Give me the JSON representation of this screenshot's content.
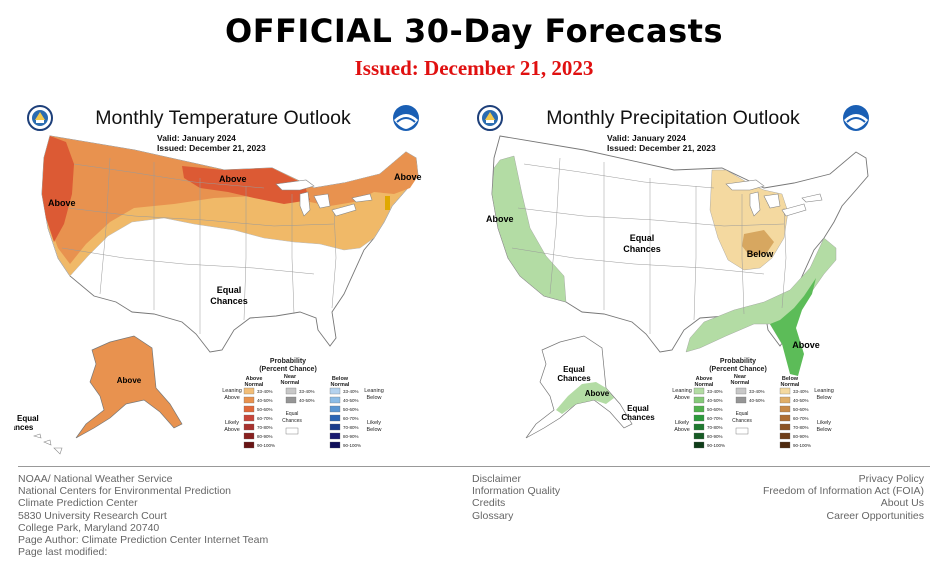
{
  "page": {
    "title": "OFFICIAL 30-Day Forecasts",
    "issued": "Issued: December 21, 2023"
  },
  "temperature_map": {
    "title": "Monthly Temperature Outlook",
    "valid": "Valid:  January 2024",
    "issued": "Issued:  December 21, 2023",
    "labels": {
      "above_west": "Above",
      "above_north": "Above",
      "above_northeast": "Above",
      "equal_chances_line1": "Equal",
      "equal_chances_line2": "Chances",
      "above_alaska": "Above",
      "hawaii_equal_line1": "Equal",
      "hawaii_equal_line2": "Chances"
    },
    "legend": {
      "title_line1": "Probability",
      "title_line2": "(Percent Chance)",
      "col_left_line1": "Above",
      "col_left_line2": "Normal",
      "col_mid_line1": "Near",
      "col_mid_line2": "Normal",
      "col_right_line1": "Below",
      "col_right_line2": "Normal",
      "leaning_left_line1": "Leaning",
      "leaning_left_line2": "Above",
      "likely_left_line1": "Likely",
      "likely_left_line2": "Above",
      "leaning_right_line1": "Leaning",
      "leaning_right_line2": "Below",
      "likely_right_line1": "Likely",
      "likely_right_line2": "Below",
      "equal_line1": "Equal",
      "equal_line2": "Chances",
      "left_colors": [
        "#f2be78",
        "#e8924f",
        "#e0683a",
        "#c8453a",
        "#a8322e",
        "#88201f",
        "#681414"
      ],
      "mid_colors": [
        "#c8c8c8",
        "#969696"
      ],
      "right_colors": [
        "#b4d2ee",
        "#8cbce6",
        "#5a96d2",
        "#2a64b4",
        "#1a3c8c",
        "#1a1a70",
        "#10105a"
      ],
      "ranges": [
        "33-40%",
        "40-50%",
        "50-60%",
        "60-70%",
        "70-80%",
        "80-90%",
        "90-100%"
      ],
      "mid_ranges": [
        "33-40%",
        "40-50%"
      ]
    }
  },
  "precipitation_map": {
    "title": "Monthly Precipitation Outlook",
    "valid": "Valid:  January 2024",
    "issued": "Issued:  December 21, 2023",
    "labels": {
      "above_west": "Above",
      "equal_chances_line1": "Equal",
      "equal_chances_line2": "Chances",
      "below_midwest": "Below",
      "above_southeast": "Above",
      "alaska_equal_line1": "Equal",
      "alaska_equal_line2": "Chances",
      "above_alaska": "Above",
      "alaska_south_equal_line1": "Equal",
      "alaska_south_equal_line2": "Chances"
    },
    "legend": {
      "title_line1": "Probability",
      "title_line2": "(Percent Chance)",
      "col_left_line1": "Above",
      "col_left_line2": "Normal",
      "col_mid_line1": "Near",
      "col_mid_line2": "Normal",
      "col_right_line1": "Below",
      "col_right_line2": "Normal",
      "leaning_left_line1": "Leaning",
      "leaning_left_line2": "Above",
      "likely_left_line1": "Likely",
      "likely_left_line2": "Above",
      "leaning_right_line1": "Leaning",
      "leaning_right_line2": "Below",
      "likely_right_line1": "Likely",
      "likely_right_line2": "Below",
      "equal_line1": "Equal",
      "equal_line2": "Chances",
      "left_colors": [
        "#b3dca4",
        "#86c97a",
        "#52b14e",
        "#2c9a3c",
        "#1f7a30",
        "#165a24",
        "#0e3c18"
      ],
      "mid_colors": [
        "#c8c8c8",
        "#969696"
      ],
      "right_colors": [
        "#f4d9a0",
        "#e0ae68",
        "#c88a48",
        "#ae6e34",
        "#8c5426",
        "#6e3e1a",
        "#4e2a10"
      ],
      "ranges": [
        "33-40%",
        "40-50%",
        "50-60%",
        "60-70%",
        "70-80%",
        "80-90%",
        "90-100%"
      ],
      "mid_ranges": [
        "33-40%",
        "40-50%"
      ]
    }
  },
  "colors": {
    "temp_above_light": "#f0b968",
    "temp_above_mid": "#e8924f",
    "temp_above_dark": "#dc5a34",
    "temp_gold": "#e0a800",
    "precip_above_light": "#b3dca4",
    "precip_above_mid": "#5cbc58",
    "precip_below_light": "#f4d9a0",
    "precip_below_mid": "#d7a760",
    "issued_red": "#e01010"
  },
  "footer": {
    "left": [
      "NOAA/ National Weather Service",
      "National Centers for Environmental Prediction",
      "Climate Prediction Center",
      "5830 University Research Court",
      "College Park, Maryland 20740",
      "Page Author: Climate Prediction Center Internet Team",
      "Page last modified:"
    ],
    "middle": [
      "Disclaimer",
      "Information Quality",
      "Credits",
      "Glossary"
    ],
    "right": [
      "Privacy Policy",
      "Freedom of Information Act (FOIA)",
      "About Us",
      "Career Opportunities"
    ]
  }
}
